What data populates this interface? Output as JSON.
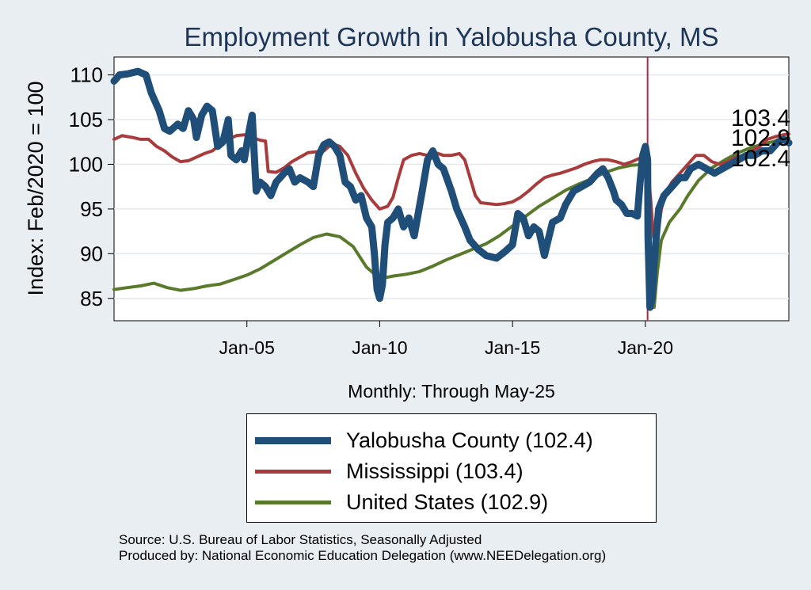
{
  "chart_data": {
    "type": "line",
    "title": "Employment Growth in Yalobusha  County, MS",
    "xlabel": "Monthly: Through May-25",
    "ylabel": "Index: Feb/2020 = 100",
    "xlim": [
      2000.0,
      2025.4
    ],
    "ylim": [
      82.5,
      112
    ],
    "yticks": [
      85,
      90,
      95,
      100,
      105,
      110
    ],
    "xticks": [
      {
        "value": 2005.0,
        "label": "Jan-05"
      },
      {
        "value": 2010.0,
        "label": "Jan-10"
      },
      {
        "value": 2015.0,
        "label": "Jan-15"
      },
      {
        "value": 2020.0,
        "label": "Jan-20"
      }
    ],
    "grid": true,
    "reference_line": {
      "x": 2020.083,
      "color": "#b22746"
    },
    "end_labels": [
      "103.4",
      "102.9",
      "102.4"
    ],
    "legend_position": "bottom",
    "series": [
      {
        "name": "Yalobusha  County (102.4)",
        "color": "#1f4e79",
        "points": [
          [
            2000.0,
            109.3
          ],
          [
            2000.2,
            110.0
          ],
          [
            2000.5,
            110.1
          ],
          [
            2000.9,
            110.4
          ],
          [
            2001.2,
            110.0
          ],
          [
            2001.4,
            108.0
          ],
          [
            2001.7,
            106.0
          ],
          [
            2001.9,
            104.0
          ],
          [
            2002.1,
            103.7
          ],
          [
            2002.4,
            104.5
          ],
          [
            2002.6,
            104.0
          ],
          [
            2002.8,
            106.0
          ],
          [
            2003.0,
            105.0
          ],
          [
            2003.1,
            103.0
          ],
          [
            2003.3,
            105.5
          ],
          [
            2003.5,
            106.5
          ],
          [
            2003.7,
            106.0
          ],
          [
            2003.9,
            102.0
          ],
          [
            2004.1,
            102.5
          ],
          [
            2004.3,
            105.0
          ],
          [
            2004.4,
            101.0
          ],
          [
            2004.6,
            100.5
          ],
          [
            2004.8,
            101.5
          ],
          [
            2004.9,
            100.5
          ],
          [
            2005.1,
            104.0
          ],
          [
            2005.2,
            105.5
          ],
          [
            2005.35,
            97.0
          ],
          [
            2005.5,
            98.0
          ],
          [
            2005.7,
            97.5
          ],
          [
            2005.9,
            96.5
          ],
          [
            2006.1,
            98.0
          ],
          [
            2006.4,
            99.0
          ],
          [
            2006.6,
            99.5
          ],
          [
            2006.8,
            98.0
          ],
          [
            2007.0,
            98.5
          ],
          [
            2007.3,
            98.0
          ],
          [
            2007.5,
            97.5
          ],
          [
            2007.7,
            101.0
          ],
          [
            2007.9,
            102.2
          ],
          [
            2008.1,
            102.5
          ],
          [
            2008.3,
            102.0
          ],
          [
            2008.5,
            101.0
          ],
          [
            2008.7,
            98.0
          ],
          [
            2008.9,
            97.5
          ],
          [
            2009.1,
            96.0
          ],
          [
            2009.3,
            96.5
          ],
          [
            2009.5,
            94.0
          ],
          [
            2009.7,
            93.0
          ],
          [
            2009.8,
            90.0
          ],
          [
            2009.9,
            86.0
          ],
          [
            2010.0,
            85.0
          ],
          [
            2010.1,
            86.5
          ],
          [
            2010.2,
            91.0
          ],
          [
            2010.3,
            93.5
          ],
          [
            2010.5,
            94.0
          ],
          [
            2010.7,
            95.0
          ],
          [
            2010.9,
            93.0
          ],
          [
            2011.1,
            94.0
          ],
          [
            2011.3,
            92.0
          ],
          [
            2011.6,
            97.0
          ],
          [
            2011.8,
            100.5
          ],
          [
            2012.0,
            101.5
          ],
          [
            2012.2,
            100.0
          ],
          [
            2012.4,
            99.5
          ],
          [
            2012.7,
            97.0
          ],
          [
            2012.9,
            95.0
          ],
          [
            2013.2,
            93.0
          ],
          [
            2013.4,
            91.5
          ],
          [
            2013.7,
            90.5
          ],
          [
            2014.0,
            89.8
          ],
          [
            2014.4,
            89.5
          ],
          [
            2014.7,
            90.2
          ],
          [
            2015.0,
            91.0
          ],
          [
            2015.2,
            94.5
          ],
          [
            2015.4,
            94.0
          ],
          [
            2015.6,
            92.0
          ],
          [
            2015.8,
            93.0
          ],
          [
            2016.0,
            92.5
          ],
          [
            2016.2,
            89.8
          ],
          [
            2016.5,
            93.5
          ],
          [
            2016.8,
            94.0
          ],
          [
            2017.0,
            95.5
          ],
          [
            2017.3,
            97.0
          ],
          [
            2017.6,
            97.5
          ],
          [
            2017.9,
            98.0
          ],
          [
            2018.2,
            99.0
          ],
          [
            2018.4,
            99.5
          ],
          [
            2018.6,
            98.5
          ],
          [
            2018.8,
            97.0
          ],
          [
            2018.9,
            96.0
          ],
          [
            2019.1,
            95.5
          ],
          [
            2019.3,
            94.5
          ],
          [
            2019.5,
            94.5
          ],
          [
            2019.7,
            94.2
          ],
          [
            2019.8,
            98.0
          ],
          [
            2019.9,
            101.0
          ],
          [
            2020.0,
            102.0
          ],
          [
            2020.083,
            100.5
          ],
          [
            2020.1,
            92.0
          ],
          [
            2020.17,
            84.0
          ],
          [
            2020.25,
            85.0
          ],
          [
            2020.33,
            89.0
          ],
          [
            2020.5,
            95.0
          ],
          [
            2020.7,
            96.5
          ],
          [
            2021.0,
            97.5
          ],
          [
            2021.3,
            98.5
          ],
          [
            2021.5,
            98.5
          ],
          [
            2021.7,
            99.5
          ],
          [
            2022.0,
            100.0
          ],
          [
            2022.3,
            99.5
          ],
          [
            2022.6,
            99.0
          ],
          [
            2022.9,
            99.5
          ],
          [
            2023.2,
            100.0
          ],
          [
            2023.5,
            100.5
          ],
          [
            2023.8,
            101.0
          ],
          [
            2024.1,
            101.0
          ],
          [
            2024.4,
            101.5
          ],
          [
            2024.7,
            101.5
          ],
          [
            2025.0,
            102.5
          ],
          [
            2025.2,
            102.8
          ],
          [
            2025.4,
            102.4
          ]
        ]
      },
      {
        "name": "Mississippi (103.4)",
        "color": "#a83b3c",
        "points": [
          [
            2000.0,
            102.8
          ],
          [
            2000.3,
            103.2
          ],
          [
            2000.7,
            103.0
          ],
          [
            2001.0,
            102.8
          ],
          [
            2001.3,
            102.8
          ],
          [
            2001.6,
            102.0
          ],
          [
            2001.9,
            101.5
          ],
          [
            2002.2,
            100.8
          ],
          [
            2002.5,
            100.3
          ],
          [
            2002.8,
            100.4
          ],
          [
            2003.1,
            100.8
          ],
          [
            2003.4,
            101.2
          ],
          [
            2003.7,
            101.5
          ],
          [
            2004.0,
            102.2
          ],
          [
            2004.3,
            102.8
          ],
          [
            2004.6,
            103.2
          ],
          [
            2004.9,
            103.3
          ],
          [
            2005.2,
            103.0
          ],
          [
            2005.5,
            102.7
          ],
          [
            2005.7,
            102.6
          ],
          [
            2005.8,
            99.2
          ],
          [
            2006.1,
            99.1
          ],
          [
            2006.4,
            99.6
          ],
          [
            2006.7,
            100.3
          ],
          [
            2007.0,
            100.8
          ],
          [
            2007.3,
            101.3
          ],
          [
            2007.6,
            101.4
          ],
          [
            2007.9,
            101.5
          ],
          [
            2008.2,
            102.3
          ],
          [
            2008.5,
            102.0
          ],
          [
            2008.8,
            101.0
          ],
          [
            2009.1,
            99.0
          ],
          [
            2009.4,
            97.3
          ],
          [
            2009.7,
            96.0
          ],
          [
            2010.0,
            95.0
          ],
          [
            2010.3,
            95.3
          ],
          [
            2010.5,
            96.3
          ],
          [
            2010.7,
            98.5
          ],
          [
            2010.9,
            100.5
          ],
          [
            2011.2,
            101.0
          ],
          [
            2011.5,
            101.2
          ],
          [
            2011.8,
            101.0
          ],
          [
            2012.1,
            101.3
          ],
          [
            2012.4,
            101.0
          ],
          [
            2012.7,
            101.0
          ],
          [
            2013.0,
            101.2
          ],
          [
            2013.2,
            100.5
          ],
          [
            2013.4,
            98.5
          ],
          [
            2013.6,
            96.5
          ],
          [
            2013.8,
            95.7
          ],
          [
            2014.1,
            95.6
          ],
          [
            2014.4,
            95.5
          ],
          [
            2014.7,
            95.6
          ],
          [
            2015.0,
            95.8
          ],
          [
            2015.3,
            96.3
          ],
          [
            2015.6,
            97.0
          ],
          [
            2015.9,
            97.8
          ],
          [
            2016.2,
            98.5
          ],
          [
            2016.5,
            98.8
          ],
          [
            2016.8,
            99.0
          ],
          [
            2017.1,
            99.3
          ],
          [
            2017.4,
            99.6
          ],
          [
            2017.7,
            100.0
          ],
          [
            2018.0,
            100.3
          ],
          [
            2018.3,
            100.5
          ],
          [
            2018.6,
            100.5
          ],
          [
            2018.9,
            100.3
          ],
          [
            2019.2,
            100.0
          ],
          [
            2019.5,
            100.3
          ],
          [
            2019.8,
            100.7
          ],
          [
            2020.083,
            100.0
          ],
          [
            2020.2,
            96.0
          ],
          [
            2020.3,
            92.0
          ],
          [
            2020.4,
            90.5
          ],
          [
            2020.6,
            95.0
          ],
          [
            2020.8,
            97.0
          ],
          [
            2021.0,
            98.0
          ],
          [
            2021.3,
            99.0
          ],
          [
            2021.6,
            100.0
          ],
          [
            2021.9,
            101.0
          ],
          [
            2022.2,
            101.0
          ],
          [
            2022.5,
            100.3
          ],
          [
            2022.8,
            100.0
          ],
          [
            2023.1,
            100.3
          ],
          [
            2023.4,
            100.8
          ],
          [
            2023.7,
            101.0
          ],
          [
            2024.0,
            101.5
          ],
          [
            2024.3,
            102.0
          ],
          [
            2024.6,
            102.8
          ],
          [
            2024.9,
            103.1
          ],
          [
            2025.2,
            103.3
          ],
          [
            2025.4,
            103.4
          ]
        ]
      },
      {
        "name": "United States (102.9)",
        "color": "#5a7a2b",
        "points": [
          [
            2000.0,
            86.0
          ],
          [
            2000.5,
            86.2
          ],
          [
            2001.0,
            86.4
          ],
          [
            2001.5,
            86.7
          ],
          [
            2002.0,
            86.2
          ],
          [
            2002.5,
            85.9
          ],
          [
            2003.0,
            86.1
          ],
          [
            2003.5,
            86.4
          ],
          [
            2004.0,
            86.6
          ],
          [
            2004.5,
            87.1
          ],
          [
            2005.0,
            87.6
          ],
          [
            2005.5,
            88.3
          ],
          [
            2006.0,
            89.2
          ],
          [
            2006.5,
            90.1
          ],
          [
            2007.0,
            91.0
          ],
          [
            2007.5,
            91.8
          ],
          [
            2008.0,
            92.2
          ],
          [
            2008.5,
            91.9
          ],
          [
            2009.0,
            90.8
          ],
          [
            2009.5,
            88.5
          ],
          [
            2010.0,
            87.2
          ],
          [
            2010.5,
            87.5
          ],
          [
            2011.0,
            87.7
          ],
          [
            2011.5,
            88.0
          ],
          [
            2012.0,
            88.6
          ],
          [
            2012.5,
            89.3
          ],
          [
            2013.0,
            89.9
          ],
          [
            2013.5,
            90.5
          ],
          [
            2014.0,
            91.1
          ],
          [
            2014.5,
            92.0
          ],
          [
            2015.0,
            93.1
          ],
          [
            2015.5,
            94.2
          ],
          [
            2016.0,
            95.3
          ],
          [
            2016.5,
            96.2
          ],
          [
            2017.0,
            97.1
          ],
          [
            2017.5,
            97.8
          ],
          [
            2018.0,
            98.4
          ],
          [
            2018.5,
            99.1
          ],
          [
            2019.0,
            99.6
          ],
          [
            2019.5,
            99.9
          ],
          [
            2020.0,
            100.0
          ],
          [
            2020.083,
            100.0
          ],
          [
            2020.2,
            90.0
          ],
          [
            2020.25,
            86.0
          ],
          [
            2020.33,
            84.0
          ],
          [
            2020.45,
            88.0
          ],
          [
            2020.6,
            91.5
          ],
          [
            2020.9,
            93.5
          ],
          [
            2021.3,
            95.0
          ],
          [
            2021.6,
            96.5
          ],
          [
            2022.0,
            98.2
          ],
          [
            2022.5,
            99.6
          ],
          [
            2023.0,
            100.5
          ],
          [
            2023.5,
            101.3
          ],
          [
            2024.0,
            101.9
          ],
          [
            2024.5,
            102.3
          ],
          [
            2025.0,
            102.7
          ],
          [
            2025.4,
            102.9
          ]
        ]
      }
    ]
  }
}
